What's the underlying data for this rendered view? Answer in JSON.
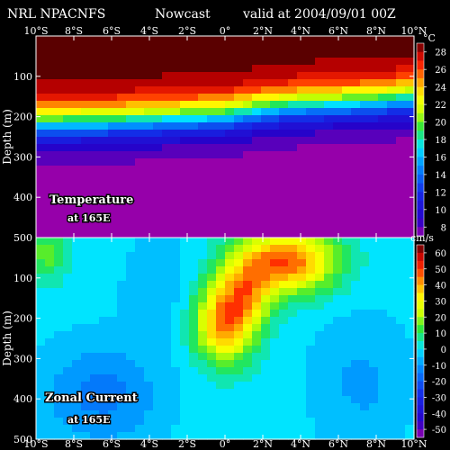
{
  "header": {
    "source": "NRL NPACNFS",
    "product": "Nowcast",
    "valid": "valid at 2004/09/01 00Z"
  },
  "colors": {
    "background": "#000000",
    "text": "#ffffff",
    "panel_border": "#ffffff"
  },
  "chart_data": [
    {
      "type": "heatmap",
      "title": "Temperature",
      "subtitle": "at 165E",
      "ylabel": "Depth (m)",
      "x_ticks": [
        "10°S",
        "8°S",
        "6°S",
        "4°S",
        "2°S",
        "0°",
        "2°N",
        "4°N",
        "6°N",
        "8°N",
        "10°N"
      ],
      "x_tick_values": [
        -10,
        -8,
        -6,
        -4,
        -2,
        0,
        2,
        4,
        6,
        8,
        10
      ],
      "y_ticks": [
        "100",
        "200",
        "300",
        "400",
        "500"
      ],
      "y_tick_values": [
        100,
        200,
        300,
        400,
        500
      ],
      "xlim": [
        -10,
        10
      ],
      "ylim": [
        0,
        500
      ],
      "y_inverted": true,
      "colorbar": {
        "unit": "°C",
        "labels": [
          "28",
          "26",
          "24",
          "22",
          "20",
          "18",
          "16",
          "14",
          "12",
          "10",
          "8"
        ],
        "min": 7,
        "max": 29,
        "step": 1
      },
      "profile": {
        "note_depth_of_isotherms_m": true,
        "lat": [
          -10,
          -6,
          -2,
          0,
          2,
          4,
          6,
          8,
          10
        ],
        "thermocline_center_m": [
          215,
          210,
          200,
          195,
          180,
          170,
          165,
          160,
          150
        ],
        "surface_temp_c": 29.5,
        "deep_temp_c": 7.5
      }
    },
    {
      "type": "heatmap",
      "title": "Zonal Current",
      "subtitle": "at 165E",
      "ylabel": "Depth (m)",
      "x_ticks": [
        "10°S",
        "8°S",
        "6°S",
        "4°S",
        "2°S",
        "0°",
        "2°N",
        "4°N",
        "6°N",
        "8°N",
        "10°N"
      ],
      "x_tick_values": [
        -10,
        -8,
        -6,
        -4,
        -2,
        0,
        2,
        4,
        6,
        8,
        10
      ],
      "y_ticks": [
        "100",
        "200",
        "300",
        "400",
        "500"
      ],
      "y_tick_values": [
        100,
        200,
        300,
        400,
        500
      ],
      "xlim": [
        -10,
        10
      ],
      "ylim": [
        0,
        500
      ],
      "y_inverted": true,
      "colorbar": {
        "unit": "cm/s",
        "labels": [
          "60",
          "50",
          "40",
          "30",
          "20",
          "10",
          "0",
          "-10",
          "-20",
          "-30",
          "-40",
          "-50"
        ],
        "min": -55,
        "max": 65,
        "step": 5
      },
      "features": [
        {
          "name": "undercurrent core",
          "lat": 0,
          "depth": 210,
          "value": 45
        },
        {
          "name": "northern jet",
          "lat": 3.5,
          "depth": 60,
          "value": 45
        },
        {
          "name": "southern surface jet",
          "lat": -9.5,
          "depth": 40,
          "value": 15
        },
        {
          "name": "deep westward flow",
          "lat": -7,
          "depth": 400,
          "value": -10
        }
      ]
    }
  ]
}
